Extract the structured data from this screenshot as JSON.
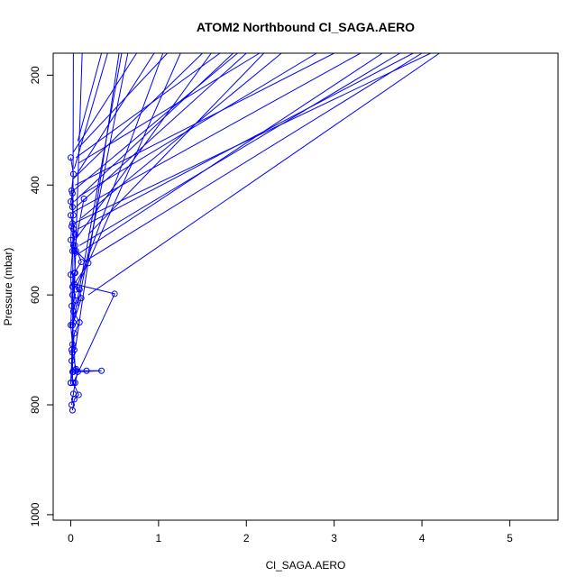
{
  "chart_data": {
    "type": "line",
    "title": "ATOM2 Northbound Cl_SAGA.AERO",
    "xlabel": "Cl_SAGA.AERO",
    "ylabel": "Pressure (mbar)",
    "xlim": [
      -0.2,
      5.55
    ],
    "ylim": [
      1010,
      160
    ],
    "y_reversed": true,
    "x_ticks": [
      "0",
      "1",
      "2",
      "3",
      "4",
      "5"
    ],
    "y_ticks": [
      "200",
      "400",
      "600",
      "800",
      "1000"
    ],
    "grid": false,
    "series_color": "#0000ff",
    "markers": "open-circle",
    "series": [
      {
        "points": [
          [
            0.0,
            760
          ],
          [
            0.02,
            740
          ],
          [
            0.01,
            700
          ],
          [
            0.03,
            650
          ],
          [
            0.02,
            600
          ],
          [
            0.05,
            560
          ],
          [
            0.04,
            520
          ],
          [
            0.03,
            480
          ],
          [
            0.02,
            440
          ],
          [
            0.01,
            410
          ],
          [
            0.03,
            380
          ],
          [
            0.0,
            350
          ]
        ]
      },
      {
        "points": [
          [
            0.01,
            800
          ],
          [
            0.03,
            780
          ],
          [
            0.05,
            760
          ],
          [
            0.08,
            740
          ],
          [
            0.35,
            738
          ],
          [
            0.18,
            738
          ],
          [
            0.05,
            737
          ],
          [
            0.04,
            700
          ],
          [
            0.02,
            655
          ],
          [
            0.12,
            606
          ],
          [
            0.1,
            590
          ],
          [
            0.06,
            590
          ]
        ]
      },
      {
        "points": [
          [
            0.02,
            810
          ],
          [
            0.04,
            790
          ],
          [
            0.09,
            782
          ],
          [
            0.03,
            760
          ],
          [
            0.5,
            598
          ],
          [
            0.04,
            580
          ],
          [
            0.2,
            542
          ],
          [
            0.06,
            520
          ],
          [
            0.03,
            510
          ],
          [
            0.05,
            490
          ],
          [
            0.02,
            470
          ],
          [
            0.0,
            455
          ]
        ]
      },
      {
        "points": [
          [
            0.0,
            760
          ],
          [
            0.01,
            720
          ],
          [
            0.02,
            690
          ],
          [
            0.0,
            655
          ],
          [
            0.01,
            620
          ],
          [
            0.0,
            563
          ],
          [
            0.02,
            520
          ],
          [
            0.0,
            500
          ],
          [
            0.01,
            475
          ],
          [
            0.03,
            455
          ],
          [
            0.0,
            430
          ],
          [
            0.02,
            415
          ]
        ]
      },
      {
        "points": [
          [
            0.03,
            740
          ],
          [
            0.06,
            735
          ],
          [
            0.02,
            705
          ],
          [
            0.04,
            670
          ],
          [
            0.1,
            650
          ],
          [
            0.03,
            630
          ],
          [
            0.06,
            610
          ],
          [
            0.02,
            585
          ],
          [
            0.04,
            560
          ],
          [
            0.12,
            540
          ],
          [
            0.05,
            510
          ],
          [
            0.15,
            425
          ]
        ]
      }
    ],
    "rays_to_top": [
      {
        "from": [
          0.02,
          760
        ],
        "to_x": 0.03
      },
      {
        "from": [
          0.01,
          740
        ],
        "to_x": 0.13
      },
      {
        "from": [
          0.05,
          700
        ],
        "to_x": 0.55
      },
      {
        "from": [
          0.03,
          650
        ],
        "to_x": 0.58
      },
      {
        "from": [
          0.08,
          620
        ],
        "to_x": 0.65
      },
      {
        "from": [
          0.2,
          600
        ],
        "to_x": 4.2
      },
      {
        "from": [
          0.06,
          590
        ],
        "to_x": 1.05
      },
      {
        "from": [
          0.12,
          570
        ],
        "to_x": 1.25
      },
      {
        "from": [
          0.15,
          540
        ],
        "to_x": 4.0
      },
      {
        "from": [
          0.04,
          530
        ],
        "to_x": 3.55
      },
      {
        "from": [
          0.1,
          510
        ],
        "to_x": 3.75
      },
      {
        "from": [
          0.05,
          500
        ],
        "to_x": 1.6
      },
      {
        "from": [
          0.2,
          490
        ],
        "to_x": 2.2
      },
      {
        "from": [
          0.08,
          480
        ],
        "to_x": 3.9
      },
      {
        "from": [
          0.03,
          470
        ],
        "to_x": 4.1
      },
      {
        "from": [
          0.12,
          460
        ],
        "to_x": 2.4
      },
      {
        "from": [
          0.02,
          450
        ],
        "to_x": 3.3
      },
      {
        "from": [
          0.06,
          440
        ],
        "to_x": 2.0
      },
      {
        "from": [
          0.04,
          430
        ],
        "to_x": 1.85
      },
      {
        "from": [
          0.1,
          420
        ],
        "to_x": 2.8
      },
      {
        "from": [
          0.03,
          410
        ],
        "to_x": 1.9
      },
      {
        "from": [
          0.05,
          400
        ],
        "to_x": 3.0
      },
      {
        "from": [
          0.02,
          390
        ],
        "to_x": 1.5
      },
      {
        "from": [
          0.07,
          380
        ],
        "to_x": 0.95
      },
      {
        "from": [
          0.04,
          370
        ],
        "to_x": 0.42
      },
      {
        "from": [
          0.09,
          360
        ],
        "to_x": 2.15
      },
      {
        "from": [
          0.06,
          350
        ],
        "to_x": 1.7
      },
      {
        "from": [
          0.03,
          340
        ],
        "to_x": 0.75
      },
      {
        "from": [
          0.1,
          330
        ],
        "to_x": 1.1
      },
      {
        "from": [
          0.08,
          320
        ],
        "to_x": 0.35
      }
    ]
  }
}
